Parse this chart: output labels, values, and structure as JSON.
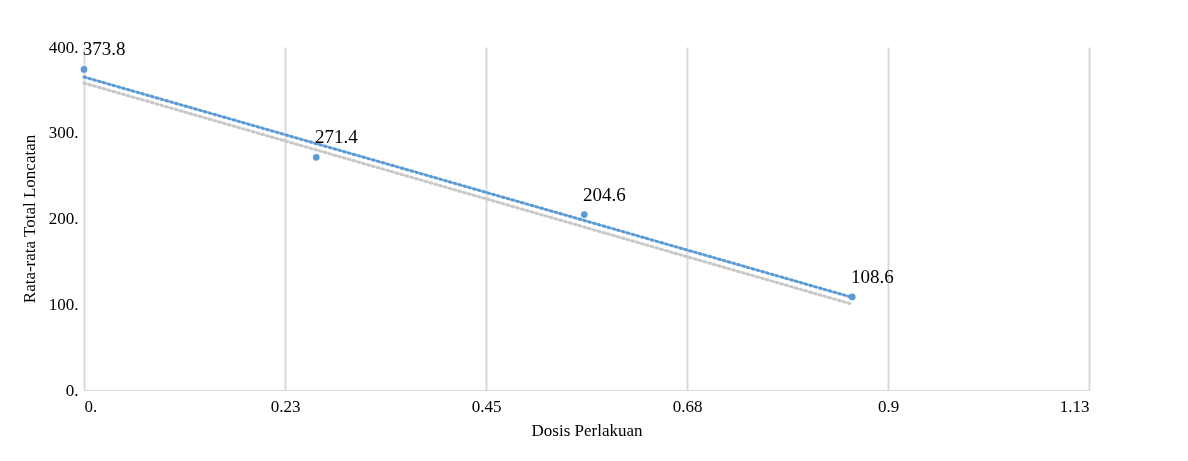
{
  "chart_data": {
    "type": "scatter",
    "xlabel": "Dosis Perlakuan",
    "ylabel": "Rata-rata Total Loncatan",
    "xlim": [
      0,
      1.125
    ],
    "xticks": [
      {
        "value": 0,
        "label": "0."
      },
      {
        "value": 0.225,
        "label": "0.23"
      },
      0.45,
      {
        "value": 0.675,
        "label": "0.68"
      },
      0.9,
      {
        "value": 1.125,
        "label": "1.13"
      }
    ],
    "ylim": [
      0,
      400
    ],
    "yticks": [
      {
        "value": 0,
        "label": "0."
      },
      {
        "value": 100,
        "label": "100."
      },
      {
        "value": 200,
        "label": "200."
      },
      {
        "value": 300,
        "label": "300."
      },
      {
        "value": 400,
        "label": "400."
      }
    ],
    "grid": "x",
    "marker": "circle",
    "series": [
      {
        "type": "line",
        "marker": "none",
        "color": "#c8c8c8",
        "line_style": "dotted",
        "x": [
          0,
          0.86
        ],
        "values": [
          358,
          100
        ]
      },
      {
        "type": "line",
        "marker": "none",
        "color": "#5b9bd5",
        "line_style": "dotted",
        "x": [
          0,
          0.86
        ],
        "values": [
          365,
          108
        ]
      },
      {
        "color": "#5b9bd5",
        "x": [
          0,
          0.26,
          0.56,
          0.86
        ],
        "values": [
          373.8,
          271.4,
          204.6,
          108.6
        ],
        "value_labels": [
          "373.8",
          "271.4",
          "204.6",
          "108.6"
        ]
      }
    ]
  }
}
